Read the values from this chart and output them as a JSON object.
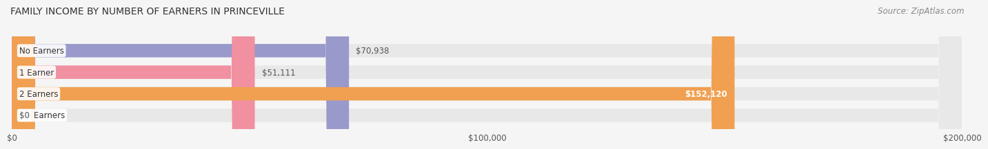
{
  "title": "FAMILY INCOME BY NUMBER OF EARNERS IN PRINCEVILLE",
  "source": "Source: ZipAtlas.com",
  "categories": [
    "No Earners",
    "1 Earner",
    "2 Earners",
    "3+ Earners"
  ],
  "values": [
    70938,
    51111,
    152120,
    0
  ],
  "bar_colors": [
    "#9999cc",
    "#f090a0",
    "#f0a050",
    "#f0a0a0"
  ],
  "bar_labels": [
    "$70,938",
    "$51,111",
    "$152,120",
    "$0"
  ],
  "label_inside": [
    false,
    false,
    true,
    false
  ],
  "xlim": [
    0,
    200000
  ],
  "xticks": [
    0,
    100000,
    200000
  ],
  "xtick_labels": [
    "$0",
    "$100,000",
    "$200,000"
  ],
  "background_color": "#f5f5f5",
  "bar_background_color": "#e8e8e8",
  "title_fontsize": 10,
  "source_fontsize": 8.5,
  "label_fontsize": 8.5,
  "tick_fontsize": 8.5,
  "bar_height": 0.62
}
